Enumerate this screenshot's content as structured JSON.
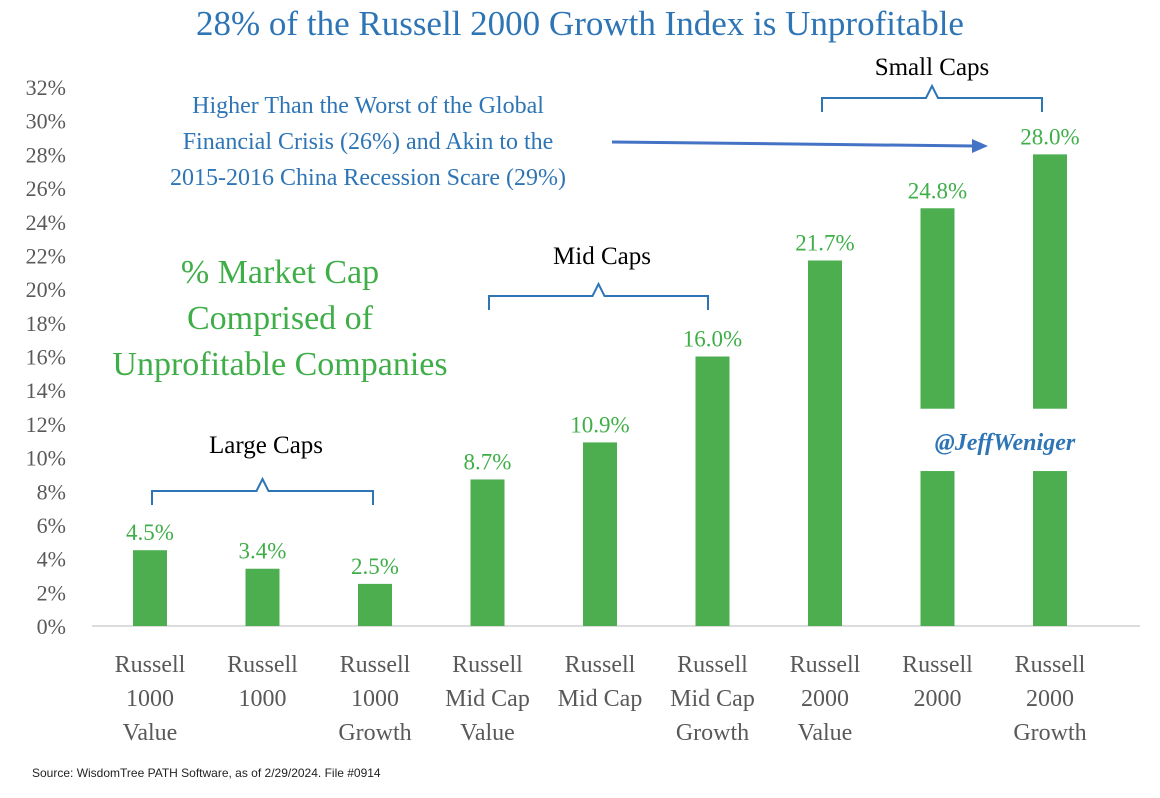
{
  "title": "28% of the Russell 2000 Growth Index is Unprofitable",
  "callout": [
    "Higher Than the Worst of the Global",
    "Financial Crisis (26%) and Akin to the",
    "2015-2016 China Recession Scare (29%)"
  ],
  "subtitle": [
    "% Market Cap",
    "Comprised of",
    "Unprofitable Companies"
  ],
  "handle": "@JeffWeniger",
  "source": "Source: WisdomTree PATH Software, as of 2/29/2024. File #0914",
  "groups": {
    "large": "Large Caps",
    "mid": "Mid Caps",
    "small": "Small Caps"
  },
  "colors": {
    "bar": "#4cae4f",
    "label": "#3fae48",
    "title": "#2e75b6",
    "callout": "#2e75b6",
    "arrow": "#4472c4",
    "bracket": "#2e75b6",
    "axis_text": "#595959",
    "handle": "#2e75b6"
  },
  "chart_data": {
    "type": "bar",
    "categories": [
      [
        "Russell",
        "1000",
        "Value"
      ],
      [
        "Russell",
        "1000"
      ],
      [
        "Russell",
        "1000",
        "Growth"
      ],
      [
        "Russell",
        "Mid Cap",
        "Value"
      ],
      [
        "Russell",
        "Mid Cap"
      ],
      [
        "Russell",
        "Mid Cap",
        "Growth"
      ],
      [
        "Russell",
        "2000",
        "Value"
      ],
      [
        "Russell",
        "2000"
      ],
      [
        "Russell",
        "2000",
        "Growth"
      ]
    ],
    "values": [
      4.5,
      3.4,
      2.5,
      8.7,
      10.9,
      16.0,
      21.7,
      24.8,
      28.0
    ],
    "data_labels": [
      "4.5%",
      "3.4%",
      "2.5%",
      "8.7%",
      "10.9%",
      "16.0%",
      "21.7%",
      "24.8%",
      "28.0%"
    ],
    "ylim": [
      0,
      32
    ],
    "yticks": [
      "0%",
      "2%",
      "4%",
      "6%",
      "8%",
      "10%",
      "12%",
      "14%",
      "16%",
      "18%",
      "20%",
      "22%",
      "24%",
      "26%",
      "28%",
      "30%",
      "32%"
    ],
    "grid": false
  }
}
